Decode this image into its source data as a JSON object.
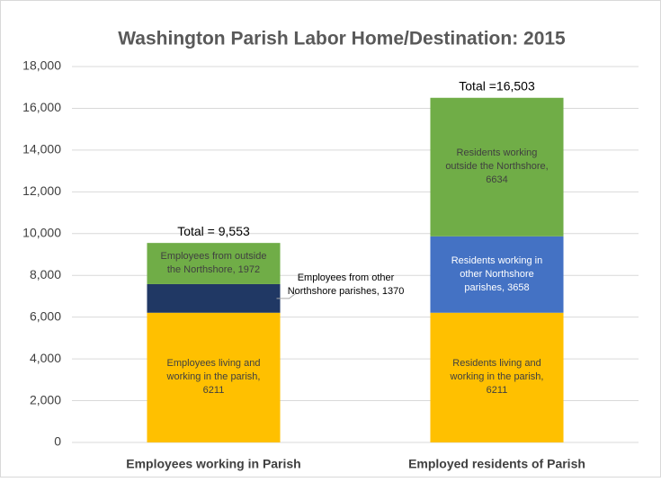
{
  "chart_data": {
    "type": "stacked_bar",
    "title": "Washington Parish Labor Home/Destination: 2015",
    "categories": [
      "Employees working in Parish",
      "Employed residents of Parish"
    ],
    "series": [
      {
        "color": "#ffc000",
        "values": [
          6211,
          6211
        ],
        "value_labels": [
          "Employees living and working in the parish, 6211",
          "Residents living and working in the parish, 6211"
        ]
      },
      {
        "colors": [
          "#203864",
          "#4472c4"
        ],
        "values": [
          1370,
          3658
        ],
        "value_labels": [
          "Employees from other Northshore parishes, 1370",
          "Residents working in other Northshore parishes, 3658"
        ]
      },
      {
        "color": "#70ad47",
        "values": [
          1972,
          6634
        ],
        "value_labels": [
          "Employees from outside the Northshore, 1972",
          "Residents working outside the Northshore, 6634"
        ]
      }
    ],
    "annotations": [
      "Total = 9,553",
      "Total =16,503"
    ],
    "ylim": [
      0,
      18000
    ],
    "yticks": [
      {
        "value": 0,
        "label": "0"
      },
      {
        "value": 2000,
        "label": "2,000"
      },
      {
        "value": 4000,
        "label": "4,000"
      },
      {
        "value": 6000,
        "label": "6,000"
      },
      {
        "value": 8000,
        "label": "8,000"
      },
      {
        "value": 10000,
        "label": "10,000"
      },
      {
        "value": 12000,
        "label": "12,000"
      },
      {
        "value": 14000,
        "label": "14,000"
      },
      {
        "value": 16000,
        "label": "16,000"
      },
      {
        "value": 18000,
        "label": "18,000"
      }
    ],
    "grid": true
  }
}
